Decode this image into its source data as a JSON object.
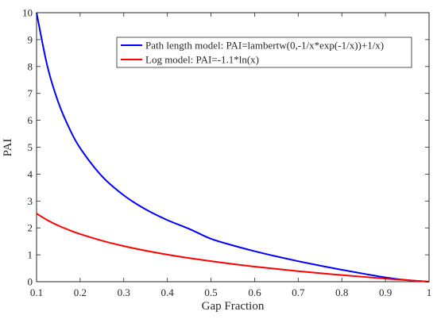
{
  "chart_data": {
    "type": "line",
    "title": "",
    "xlabel": "Gap Fraction",
    "ylabel": "PAI",
    "xlim": [
      0.1,
      1
    ],
    "ylim": [
      0,
      10
    ],
    "x_ticks": [
      0.1,
      0.2,
      0.3,
      0.4,
      0.5,
      0.6,
      0.7,
      0.8,
      0.9,
      1
    ],
    "y_ticks": [
      0,
      1,
      2,
      3,
      4,
      5,
      6,
      7,
      8,
      9,
      10
    ],
    "x_tick_labels": [
      "0.1",
      "0.2",
      "0.3",
      "0.4",
      "0.5",
      "0.6",
      "0.7",
      "0.8",
      "0.9",
      "1"
    ],
    "y_tick_labels": [
      "0",
      "1",
      "2",
      "3",
      "4",
      "5",
      "6",
      "7",
      "8",
      "9",
      "10"
    ],
    "grid": false,
    "legend_position": "top-right",
    "series": [
      {
        "name": "Path length model: PAI=lambertw(0,-1/x*exp(-1/x))+1/x)",
        "color": "#0000ff",
        "x": [
          0.1,
          0.125,
          0.15,
          0.175,
          0.2,
          0.25,
          0.3,
          0.35,
          0.4,
          0.45,
          0.5,
          0.55,
          0.6,
          0.65,
          0.7,
          0.75,
          0.8,
          0.85,
          0.9,
          0.95,
          1.0
        ],
        "y": [
          10.0,
          7.9997,
          6.6639,
          5.7046,
          4.9651,
          3.9207,
          3.2116,
          2.6903,
          2.2898,
          1.9646,
          1.5936,
          1.3498,
          1.1339,
          0.9393,
          0.7611,
          0.5962,
          0.4421,
          0.2971,
          0.1598,
          0.058,
          0.0
        ]
      },
      {
        "name": "Log model: PAI=-1.1*ln(x)",
        "color": "#ff0000",
        "x": [
          0.1,
          0.125,
          0.15,
          0.175,
          0.2,
          0.25,
          0.3,
          0.35,
          0.4,
          0.45,
          0.5,
          0.55,
          0.6,
          0.65,
          0.7,
          0.75,
          0.8,
          0.85,
          0.9,
          0.95,
          1.0
        ],
        "y": [
          2.5328,
          2.2874,
          2.0868,
          1.9173,
          1.7704,
          1.5249,
          1.3244,
          1.1548,
          1.0079,
          0.8784,
          0.7625,
          0.6577,
          0.5619,
          0.4739,
          0.3923,
          0.3165,
          0.2455,
          0.1788,
          0.1159,
          0.0564,
          0.0
        ]
      }
    ]
  }
}
